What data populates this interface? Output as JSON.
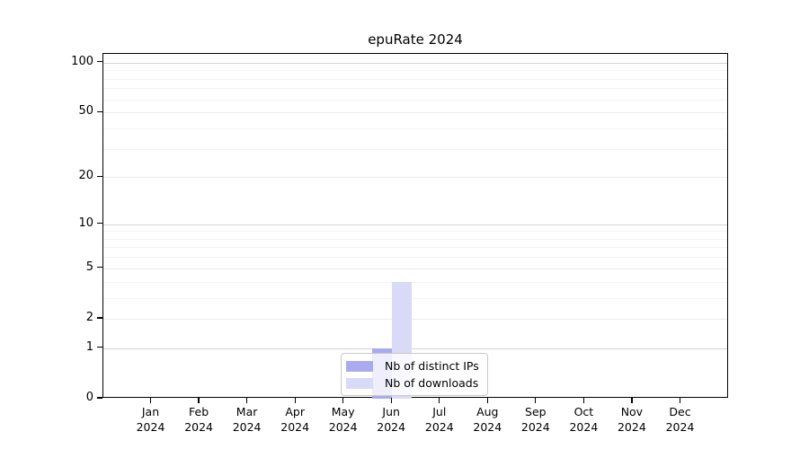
{
  "chart_data": {
    "type": "bar",
    "title": "epuRate 2024",
    "categories": [
      "Jan",
      "Feb",
      "Mar",
      "Apr",
      "May",
      "Jun",
      "Jul",
      "Aug",
      "Sep",
      "Oct",
      "Nov",
      "Dec"
    ],
    "year_label": "2024",
    "series": [
      {
        "name": "Nb of distinct IPs",
        "color": "#aaaaee",
        "values": [
          0,
          0,
          0,
          0,
          0,
          1,
          0,
          0,
          0,
          0,
          0,
          0
        ]
      },
      {
        "name": "Nb of downloads",
        "color": "#d9d9f8",
        "values": [
          0,
          0,
          0,
          0,
          0,
          4,
          0,
          0,
          0,
          0,
          0,
          0
        ]
      }
    ],
    "y_scale": "log1p",
    "y_ticks": [
      0,
      1,
      2,
      5,
      10,
      20,
      50,
      100
    ],
    "y_major_gridlines": [
      1,
      10,
      100
    ],
    "y_mid_gridlines": [
      2,
      5,
      20,
      50
    ],
    "y_minor_gridlines": [
      3,
      4,
      6,
      7,
      8,
      9,
      30,
      40,
      60,
      70,
      80,
      90
    ],
    "y_top_value": 113,
    "ylim": [
      0,
      113
    ],
    "grid": true,
    "legend_position": "lower-center",
    "axis_color": "#000000",
    "background_color": "#ffffff"
  }
}
